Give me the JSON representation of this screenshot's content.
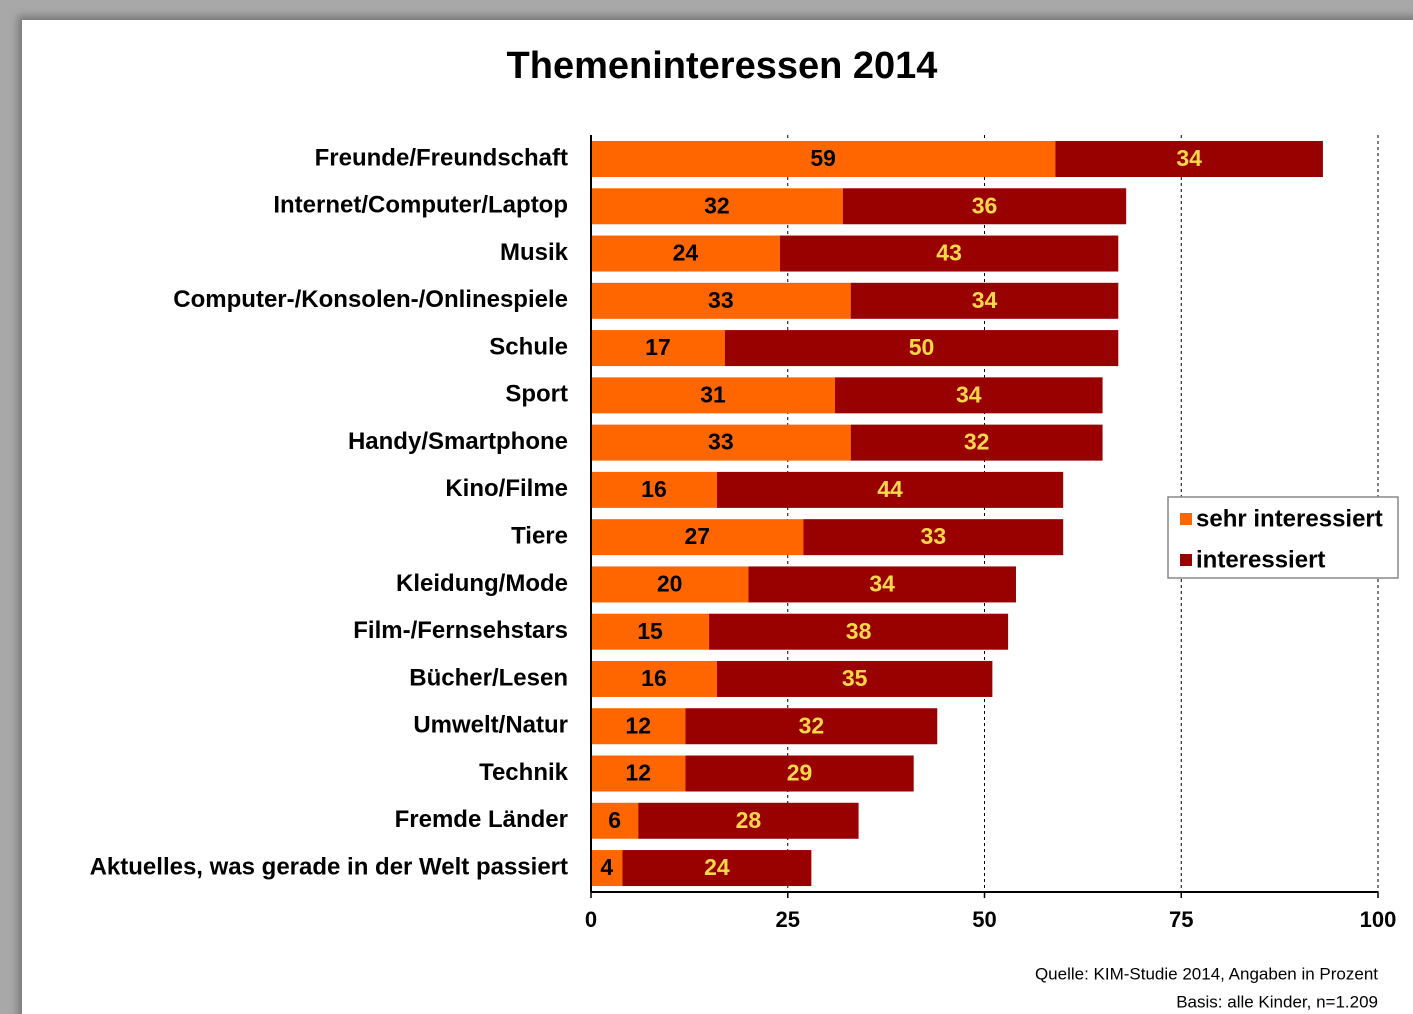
{
  "chart_data": {
    "type": "bar",
    "orientation": "horizontal",
    "stacked": true,
    "title": "Themeninteressen 2014",
    "categories": [
      "Freunde/Freundschaft",
      "Internet/Computer/Laptop",
      "Musik",
      "Computer-/Konsolen-/Onlinespiele",
      "Schule",
      "Sport",
      "Handy/Smartphone",
      "Kino/Filme",
      "Tiere",
      "Kleidung/Mode",
      "Film-/Fernsehstars",
      "Bücher/Lesen",
      "Umwelt/Natur",
      "Technik",
      "Fremde Länder",
      "Aktuelles, was gerade in der Welt passiert"
    ],
    "series": [
      {
        "name": "sehr interessiert",
        "color": "#ff6600",
        "label_color": "#000000",
        "values": [
          59,
          32,
          24,
          33,
          17,
          31,
          33,
          16,
          27,
          20,
          15,
          16,
          12,
          12,
          6,
          4
        ]
      },
      {
        "name": "interessiert",
        "color": "#990000",
        "label_color": "#ffd84a",
        "values": [
          34,
          36,
          43,
          34,
          50,
          34,
          32,
          44,
          33,
          34,
          38,
          35,
          32,
          29,
          28,
          24
        ]
      }
    ],
    "xlim": [
      0,
      100
    ],
    "xticks": [
      0,
      25,
      50,
      75,
      100
    ],
    "grid": true,
    "legend": "right",
    "notes": [
      "Quelle: KIM-Studie 2014, Angaben in Prozent",
      "Basis: alle Kinder, n=1.209"
    ]
  }
}
